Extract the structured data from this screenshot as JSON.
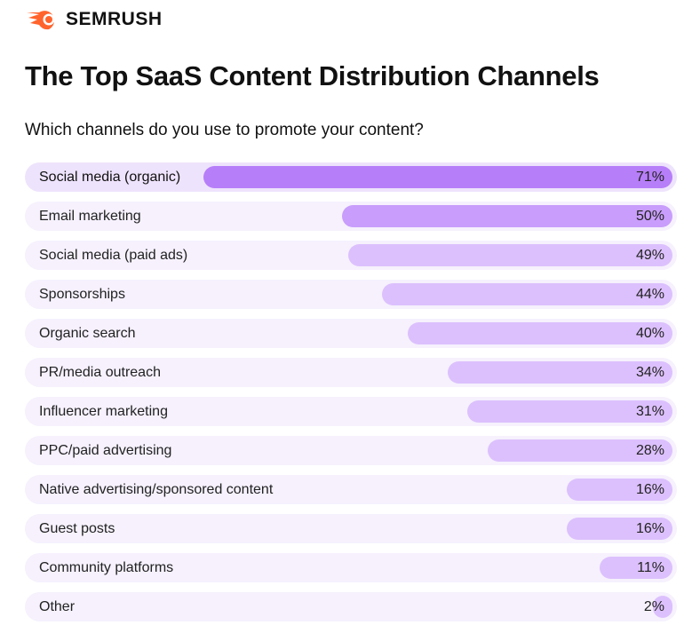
{
  "brand": {
    "name": "SEMRUSH",
    "accent": "#ff642d"
  },
  "title": "The Top SaaS Content Distribution Channels",
  "subtitle": "Which channels do you use to promote your content?",
  "chart_data": {
    "type": "bar",
    "orientation": "horizontal",
    "title": "The Top SaaS Content Distribution Channels",
    "subtitle": "Which channels do you use to promote your content?",
    "categories": [
      "Social media (organic)",
      "Email marketing",
      "Social media (paid ads)",
      "Sponsorships",
      "Organic search",
      "PR/media outreach",
      "Influencer marketing",
      "PPC/paid advertising",
      "Native advertising/sponsored content",
      "Guest posts",
      "Community platforms",
      "Other"
    ],
    "values": [
      71,
      50,
      49,
      44,
      40,
      34,
      31,
      28,
      16,
      16,
      11,
      2
    ],
    "labels": [
      "71%",
      "50%",
      "49%",
      "44%",
      "40%",
      "34%",
      "31%",
      "28%",
      "16%",
      "16%",
      "11%",
      "2%"
    ],
    "unit": "%",
    "xlim": [
      0,
      100
    ],
    "colors": {
      "top": "#b77ef9",
      "second": "#c89dfb",
      "rest": "#dcc0fd"
    }
  }
}
